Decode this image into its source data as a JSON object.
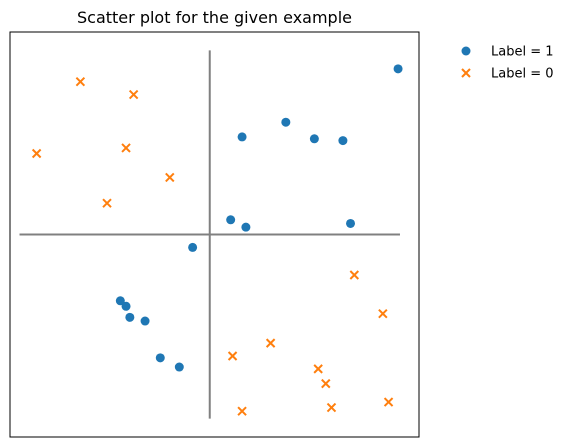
{
  "chart_data": {
    "type": "scatter",
    "title": "Scatter plot for the given example",
    "xlabel": "",
    "ylabel": "",
    "xlim": [
      -1.05,
      1.1
    ],
    "ylim": [
      -1.1,
      1.1
    ],
    "grid": false,
    "ticks": "none",
    "legend_position": "outside-top-right",
    "reference_lines": {
      "horizontal": {
        "y": 0,
        "x_from": -1.0,
        "x_to": 1.0,
        "color": "#808080"
      },
      "vertical": {
        "x": 0,
        "y_from": -1.0,
        "y_to": 1.0,
        "color": "#808080"
      }
    },
    "series": [
      {
        "name": "Label = 1",
        "marker": "circle",
        "color": "#1f77b4",
        "points": [
          {
            "x": 0.99,
            "y": 0.9
          },
          {
            "x": 0.17,
            "y": 0.53
          },
          {
            "x": 0.4,
            "y": 0.61
          },
          {
            "x": 0.55,
            "y": 0.52
          },
          {
            "x": 0.7,
            "y": 0.51
          },
          {
            "x": 0.11,
            "y": 0.08
          },
          {
            "x": 0.19,
            "y": 0.04
          },
          {
            "x": 0.74,
            "y": 0.06
          },
          {
            "x": -0.09,
            "y": -0.07
          },
          {
            "x": -0.47,
            "y": -0.36
          },
          {
            "x": -0.44,
            "y": -0.39
          },
          {
            "x": -0.42,
            "y": -0.45
          },
          {
            "x": -0.34,
            "y": -0.47
          },
          {
            "x": -0.26,
            "y": -0.67
          },
          {
            "x": -0.16,
            "y": -0.72
          }
        ]
      },
      {
        "name": "Label = 0",
        "marker": "x",
        "color": "#ff7f0e",
        "points": [
          {
            "x": -0.68,
            "y": 0.83
          },
          {
            "x": -0.4,
            "y": 0.76
          },
          {
            "x": -0.91,
            "y": 0.44
          },
          {
            "x": -0.44,
            "y": 0.47
          },
          {
            "x": -0.21,
            "y": 0.31
          },
          {
            "x": -0.54,
            "y": 0.17
          },
          {
            "x": 0.76,
            "y": -0.22
          },
          {
            "x": 0.91,
            "y": -0.43
          },
          {
            "x": 0.32,
            "y": -0.59
          },
          {
            "x": 0.12,
            "y": -0.66
          },
          {
            "x": 0.57,
            "y": -0.73
          },
          {
            "x": 0.61,
            "y": -0.81
          },
          {
            "x": 0.17,
            "y": -0.96
          },
          {
            "x": 0.64,
            "y": -0.94
          },
          {
            "x": 0.94,
            "y": -0.91
          }
        ]
      }
    ]
  }
}
